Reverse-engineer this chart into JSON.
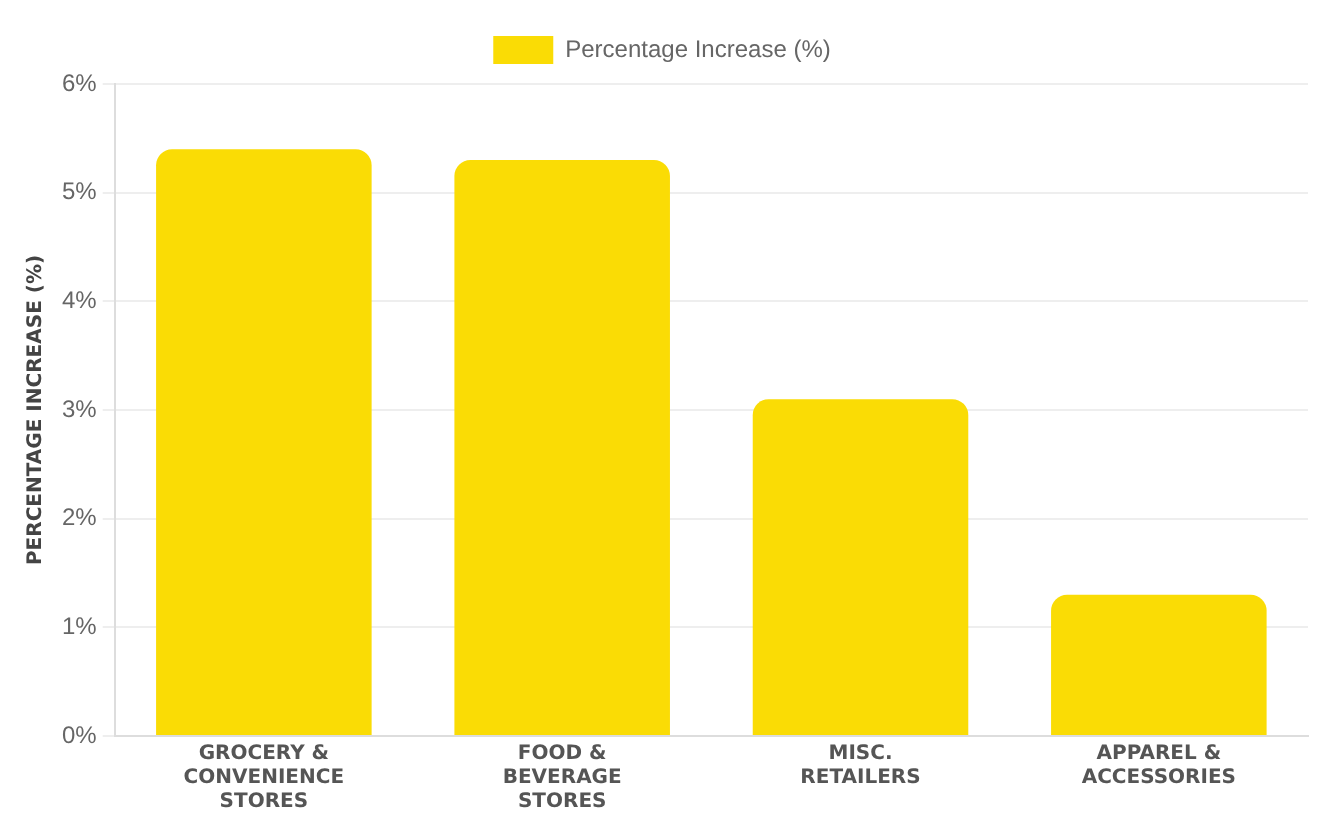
{
  "chart_data": {
    "type": "bar",
    "ylabel": "PERCENTAGE INCREASE (%)",
    "categories": [
      "GROCERY & CONVENIENCE STORES",
      "FOOD & BEVERAGE STORES",
      "MISC. RETAILERS",
      "APPAREL & ACCESSORIES"
    ],
    "series": [
      {
        "name": "Percentage Increase (%)",
        "color": "#fadc05",
        "values": [
          5.4,
          5.3,
          3.1,
          1.3
        ]
      }
    ],
    "ylim": [
      0,
      6
    ],
    "yticks": [
      {
        "value": 0,
        "label": "0%"
      },
      {
        "value": 1,
        "label": "1%"
      },
      {
        "value": 2,
        "label": "2%"
      },
      {
        "value": 3,
        "label": "3%"
      },
      {
        "value": 4,
        "label": "4%"
      },
      {
        "value": 5,
        "label": "5%"
      },
      {
        "value": 6,
        "label": "6%"
      }
    ],
    "grid": "y",
    "legend": "top"
  }
}
